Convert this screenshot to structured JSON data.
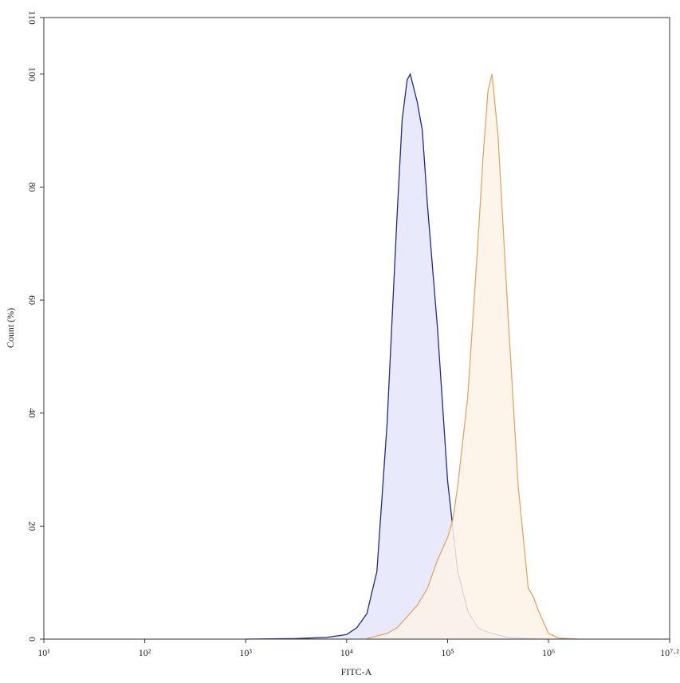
{
  "chart_data": {
    "type": "histogram-overlay",
    "xlabel": "FITC-A",
    "ylabel": "Count (%)",
    "xscale": "log",
    "xlim": [
      10,
      15848931.92
    ],
    "xticks": [
      {
        "value": 10,
        "label": "10¹"
      },
      {
        "value": 100,
        "label": "10²"
      },
      {
        "value": 1000,
        "label": "10³"
      },
      {
        "value": 10000,
        "label": "10⁴"
      },
      {
        "value": 100000,
        "label": "10⁵"
      },
      {
        "value": 1000000,
        "label": "10⁶"
      },
      {
        "value": 15848931.92,
        "label": "10⁷·²"
      }
    ],
    "ylim": [
      0,
      110
    ],
    "yticks": [
      0,
      20,
      40,
      60,
      80,
      100,
      110
    ],
    "grid": false,
    "series": [
      {
        "color": "#1f2a8a",
        "fill": "#e4e6fb",
        "x": [
          1000,
          3162,
          6310,
          10000,
          12589,
          15849,
          19953,
          25119,
          31623,
          35481,
          39811,
          42658,
          50119,
          56234,
          63096,
          79433,
          100000,
          125893,
          158489,
          199526,
          251189,
          398107,
          630957,
          1000000
        ],
        "values": [
          0,
          0.1,
          0.3,
          0.8,
          2,
          4.5,
          12,
          38,
          75,
          92,
          99,
          100,
          95,
          90,
          77,
          55,
          28,
          12,
          5,
          2,
          1.2,
          0.3,
          0.1,
          0
        ]
      },
      {
        "color": "#e3a565",
        "fill": "#fdf3e6",
        "x": [
          15849,
          25119,
          31623,
          39811,
          50119,
          63096,
          79433,
          100000,
          112202,
          125893,
          158489,
          199526,
          223872,
          251189,
          275423,
          316228,
          398107,
          501187,
          630957,
          707946,
          794328,
          1000000,
          1258925,
          1995262
        ],
        "values": [
          0.1,
          1,
          2,
          4,
          6,
          9,
          14,
          18,
          21,
          27,
          43,
          70,
          85,
          97,
          100,
          89,
          57,
          27,
          9,
          7.5,
          5,
          1,
          0.2,
          0
        ]
      }
    ]
  }
}
